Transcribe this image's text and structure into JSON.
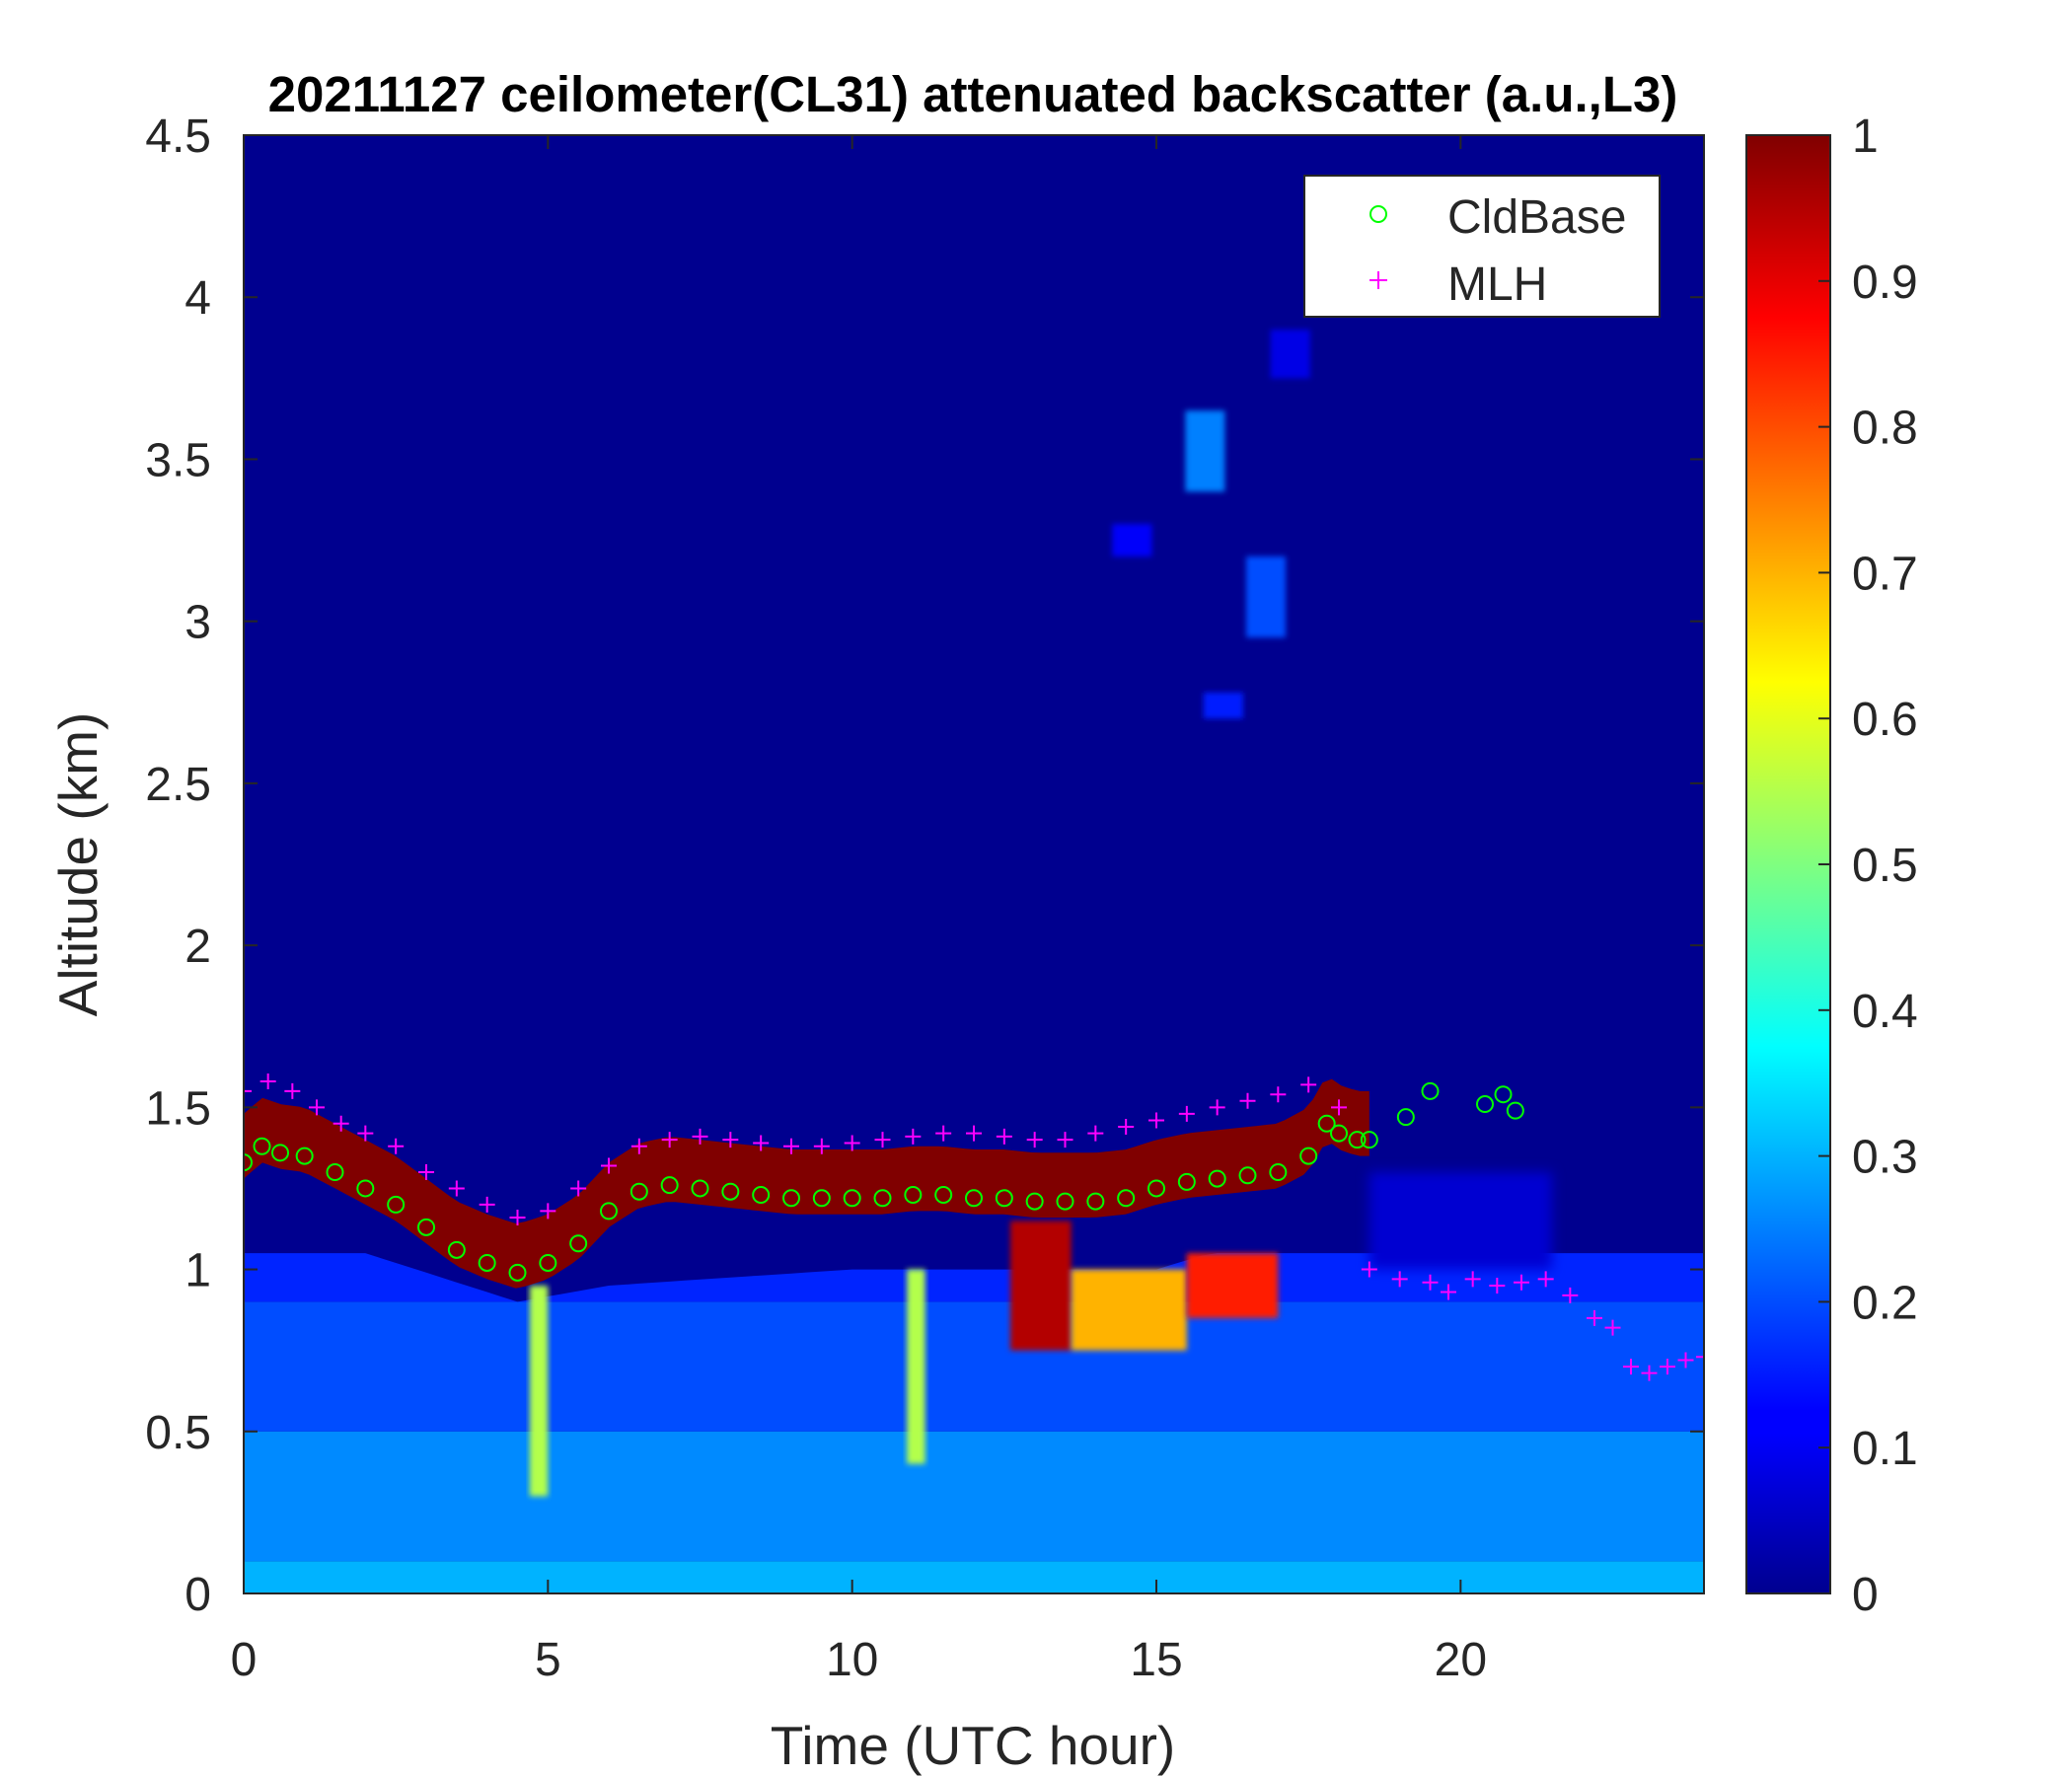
{
  "chart_data": {
    "type": "heatmap",
    "title": "20211127 ceilometer(CL31) attenuated backscatter (a.u.,L3)",
    "xlabel": "Time (UTC hour)",
    "ylabel": "Altitude (km)",
    "xlim": [
      0,
      24
    ],
    "ylim": [
      0,
      4.5
    ],
    "xticks": [
      0,
      5,
      10,
      15,
      20
    ],
    "xtick_labels": [
      "0",
      "5",
      "10",
      "15",
      "20"
    ],
    "yticks": [
      0,
      0.5,
      1,
      1.5,
      2,
      2.5,
      3,
      3.5,
      4,
      4.5
    ],
    "ytick_labels": [
      "0",
      "0.5",
      "1",
      "1.5",
      "2",
      "2.5",
      "3",
      "3.5",
      "4",
      "4.5"
    ],
    "colorbar": {
      "colormap": "jet",
      "range": [
        0,
        1
      ],
      "ticks": [
        0,
        0.1,
        0.2,
        0.3,
        0.4,
        0.5,
        0.6,
        0.7,
        0.8,
        0.9,
        1
      ],
      "tick_labels": [
        "0",
        "0.1",
        "0.2",
        "0.3",
        "0.4",
        "0.5",
        "0.6",
        "0.7",
        "0.8",
        "0.9",
        "1"
      ]
    },
    "legend": {
      "position": "top-right",
      "entries": [
        {
          "label": "CldBase",
          "marker": "circle",
          "color": "#00ff00"
        },
        {
          "label": "MLH",
          "marker": "plus",
          "color": "#ff00ff"
        }
      ]
    },
    "grid": false,
    "background_value": 0.0,
    "aerosol_layer": {
      "description_values": "near-surface backscatter in units of colorbar (0-1)",
      "bands": [
        {
          "alt": [
            0.0,
            0.1
          ],
          "value": 0.3
        },
        {
          "alt": [
            0.1,
            0.5
          ],
          "value": 0.26
        },
        {
          "alt": [
            0.5,
            0.9
          ],
          "value": 0.2
        },
        {
          "alt": [
            0.9,
            1.05
          ],
          "value": 0.16
        }
      ],
      "top_km": [
        {
          "t": 0,
          "z": 1.1
        },
        {
          "t": 2,
          "z": 1.05
        },
        {
          "t": 4.5,
          "z": 0.9
        },
        {
          "t": 6,
          "z": 0.95
        },
        {
          "t": 10,
          "z": 1.0
        },
        {
          "t": 15,
          "z": 1.0
        },
        {
          "t": 18.5,
          "z": 1.2
        },
        {
          "t": 24,
          "z": 1.15
        }
      ]
    },
    "cloud_layer": {
      "value": 1.0,
      "thickness_km": 0.15,
      "t_range": [
        0,
        18.5
      ]
    },
    "high_features": [
      {
        "t": 15.8,
        "z_bottom": 3.4,
        "z_top": 3.65,
        "value": 0.25
      },
      {
        "t": 16.8,
        "z_bottom": 2.95,
        "z_top": 3.2,
        "value": 0.2
      },
      {
        "t": 14.6,
        "z_bottom": 3.2,
        "z_top": 3.3,
        "value": 0.12
      },
      {
        "t": 17.2,
        "z_bottom": 3.75,
        "z_top": 3.9,
        "value": 0.1
      },
      {
        "t": 16.1,
        "z_bottom": 2.7,
        "z_top": 2.78,
        "value": 0.15
      }
    ],
    "intense_regions": [
      {
        "t": [
          12.6,
          13.6
        ],
        "z": [
          0.75,
          1.15
        ],
        "value": 0.95
      },
      {
        "t": [
          13.6,
          15.5
        ],
        "z": [
          0.75,
          1.0
        ],
        "value": 0.7
      },
      {
        "t": [
          15.5,
          17.0
        ],
        "z": [
          0.85,
          1.05
        ],
        "value": 0.85
      },
      {
        "t": [
          10.9,
          11.2
        ],
        "z": [
          0.4,
          1.0
        ],
        "value": 0.55
      },
      {
        "t": [
          4.7,
          5.0
        ],
        "z": [
          0.3,
          0.95
        ],
        "value": 0.55
      }
    ],
    "series": [
      {
        "name": "CldBase",
        "marker": "circle",
        "color": "#00ff00",
        "x": [
          0.0,
          0.3,
          0.6,
          1.0,
          1.5,
          2.0,
          2.5,
          3.0,
          3.5,
          4.0,
          4.5,
          5.0,
          5.5,
          6.0,
          6.5,
          7.0,
          7.5,
          8.0,
          8.5,
          9.0,
          9.5,
          10.0,
          10.5,
          11.0,
          11.5,
          12.0,
          12.5,
          13.0,
          13.5,
          14.0,
          14.5,
          15.0,
          15.5,
          16.0,
          16.5,
          17.0,
          17.5,
          17.8,
          18.0,
          18.3,
          18.5,
          19.1,
          19.5,
          20.4,
          20.7,
          20.9
        ],
        "y": [
          1.33,
          1.38,
          1.36,
          1.35,
          1.3,
          1.25,
          1.2,
          1.13,
          1.06,
          1.02,
          0.99,
          1.02,
          1.08,
          1.18,
          1.24,
          1.26,
          1.25,
          1.24,
          1.23,
          1.22,
          1.22,
          1.22,
          1.22,
          1.23,
          1.23,
          1.22,
          1.22,
          1.21,
          1.21,
          1.21,
          1.22,
          1.25,
          1.27,
          1.28,
          1.29,
          1.3,
          1.35,
          1.45,
          1.42,
          1.4,
          1.4,
          1.47,
          1.55,
          1.51,
          1.54,
          1.49
        ]
      },
      {
        "name": "MLH",
        "marker": "plus",
        "color": "#ff00ff",
        "x": [
          0.0,
          0.4,
          0.8,
          1.2,
          1.6,
          2.0,
          2.5,
          3.0,
          3.5,
          4.0,
          4.5,
          5.0,
          5.5,
          6.0,
          6.5,
          7.0,
          7.5,
          8.0,
          8.5,
          9.0,
          9.5,
          10.0,
          10.5,
          11.0,
          11.5,
          12.0,
          12.5,
          13.0,
          13.5,
          14.0,
          14.5,
          15.0,
          15.5,
          16.0,
          16.5,
          17.0,
          17.5,
          18.0,
          18.5,
          19.0,
          19.5,
          19.8,
          20.2,
          20.6,
          21.0,
          21.4,
          21.8,
          22.2,
          22.5,
          22.8,
          23.1,
          23.4,
          23.7,
          24.0
        ],
        "y": [
          1.55,
          1.58,
          1.55,
          1.5,
          1.45,
          1.42,
          1.38,
          1.3,
          1.25,
          1.2,
          1.16,
          1.18,
          1.25,
          1.32,
          1.38,
          1.4,
          1.41,
          1.4,
          1.39,
          1.38,
          1.38,
          1.39,
          1.4,
          1.41,
          1.42,
          1.42,
          1.41,
          1.4,
          1.4,
          1.42,
          1.44,
          1.46,
          1.48,
          1.5,
          1.52,
          1.54,
          1.57,
          1.5,
          1.0,
          0.97,
          0.96,
          0.93,
          0.97,
          0.95,
          0.96,
          0.97,
          0.92,
          0.85,
          0.82,
          0.7,
          0.68,
          0.7,
          0.72,
          0.73
        ]
      }
    ]
  }
}
